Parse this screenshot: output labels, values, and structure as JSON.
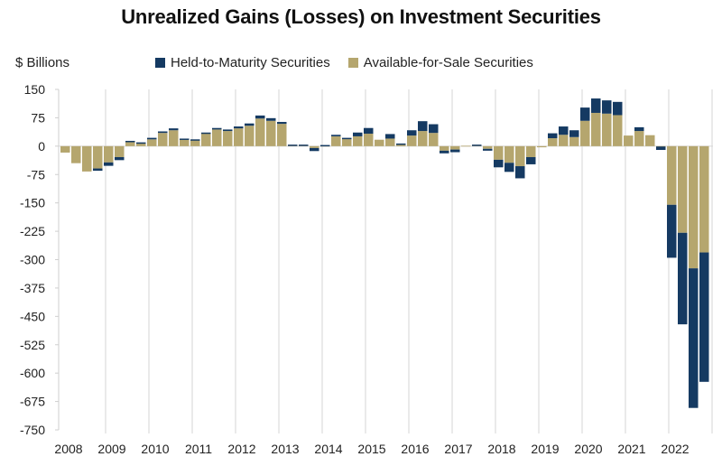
{
  "chart_data": {
    "type": "bar",
    "stacked": true,
    "title": "Unrealized Gains (Losses) on Investment Securities",
    "ylabel": "$ Billions",
    "xlabel": "",
    "ylim": [
      -750,
      150
    ],
    "yticks": [
      150,
      75,
      0,
      -75,
      -150,
      -225,
      -300,
      -375,
      -450,
      -525,
      -600,
      -675,
      -750
    ],
    "xtick_labels": [
      "2008",
      "2009",
      "2010",
      "2011",
      "2012",
      "2013",
      "2014",
      "2015",
      "2016",
      "2017",
      "2018",
      "2019",
      "2020",
      "2021",
      "2022"
    ],
    "grid": "vertical",
    "legend_position": "top",
    "categories": [
      "2008Q1",
      "2008Q2",
      "2008Q3",
      "2008Q4",
      "2009Q1",
      "2009Q2",
      "2009Q3",
      "2009Q4",
      "2010Q1",
      "2010Q2",
      "2010Q3",
      "2010Q4",
      "2011Q1",
      "2011Q2",
      "2011Q3",
      "2011Q4",
      "2012Q1",
      "2012Q2",
      "2012Q3",
      "2012Q4",
      "2013Q1",
      "2013Q2",
      "2013Q3",
      "2013Q4",
      "2014Q1",
      "2014Q2",
      "2014Q3",
      "2014Q4",
      "2015Q1",
      "2015Q2",
      "2015Q3",
      "2015Q4",
      "2016Q1",
      "2016Q2",
      "2016Q3",
      "2016Q4",
      "2017Q1",
      "2017Q2",
      "2017Q3",
      "2017Q4",
      "2018Q1",
      "2018Q2",
      "2018Q3",
      "2018Q4",
      "2019Q1",
      "2019Q2",
      "2019Q3",
      "2019Q4",
      "2020Q1",
      "2020Q2",
      "2020Q3",
      "2020Q4",
      "2021Q1",
      "2021Q2",
      "2021Q3",
      "2021Q4",
      "2022Q1",
      "2022Q2",
      "2022Q3",
      "2022Q4"
    ],
    "series": [
      {
        "name": "Available-for-Sale Securities",
        "color": "#b5a66e",
        "values": [
          -17,
          -45,
          -67,
          -59,
          -43,
          -29,
          11,
          8,
          18,
          35,
          42,
          17,
          16,
          33,
          44,
          40,
          47,
          54,
          73,
          67,
          59,
          2,
          2,
          -5,
          1,
          26,
          20,
          26,
          33,
          17,
          20,
          4,
          28,
          40,
          35,
          -12,
          -9,
          1,
          2,
          -7,
          -36,
          -44,
          -53,
          -29,
          -3,
          21,
          30,
          24,
          67,
          88,
          86,
          82,
          28,
          40,
          29,
          -1,
          -155,
          -229,
          -323,
          -281
        ]
      },
      {
        "name": "Held-to-Maturity Securities",
        "color": "#153a62",
        "values": [
          0,
          0,
          0,
          -6,
          -9,
          -8,
          3,
          2,
          4,
          4,
          5,
          3,
          2,
          3,
          4,
          4,
          5,
          6,
          8,
          7,
          5,
          2,
          2,
          -8,
          2,
          4,
          2,
          10,
          15,
          0,
          12,
          3,
          14,
          26,
          23,
          -7,
          -7,
          0,
          2,
          -5,
          -20,
          -24,
          -32,
          -19,
          0,
          13,
          22,
          18,
          35,
          38,
          35,
          35,
          0,
          10,
          0,
          -9,
          -140,
          -242,
          -369,
          -342
        ]
      }
    ]
  }
}
